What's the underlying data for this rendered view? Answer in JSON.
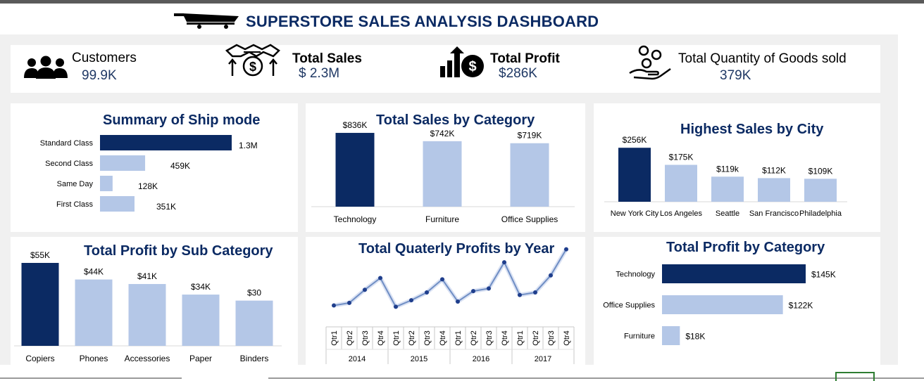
{
  "dashboard": {
    "title": "SUPERSTORE SALES ANALYSIS DASHBOARD",
    "colors": {
      "dark": "#0b2a63",
      "light": "#b4c7e7",
      "title": "#0b2a63"
    }
  },
  "kpis": {
    "customers": {
      "label": "Customers",
      "value": "99.9K",
      "icon": "people-icon"
    },
    "sales": {
      "label": "Total Sales",
      "value": "$ 2.3M",
      "icon": "handshake-dollar-icon"
    },
    "profit": {
      "label": "Total Profit",
      "value": "$286K",
      "icon": "growth-chart-dollar-icon"
    },
    "quantity": {
      "label": "Total Quantity of Goods sold",
      "value": "379K",
      "icon": "hand-coins-icon"
    }
  },
  "chart_data": [
    {
      "id": "ship_mode",
      "type": "bar",
      "orientation": "horizontal",
      "title": "Summary of Ship mode",
      "categories": [
        "Standard Class",
        "Second Class",
        "Same Day",
        "First Class"
      ],
      "values": [
        1340000,
        459000,
        128000,
        351000
      ],
      "labels": [
        "1.3M",
        "459K",
        "128K",
        "351K"
      ],
      "highlight_index": 0
    },
    {
      "id": "sales_by_category",
      "type": "bar",
      "title": "Total Sales by Category",
      "categories": [
        "Technology",
        "Furniture",
        "Office Supplies"
      ],
      "values": [
        836,
        742,
        719
      ],
      "labels": [
        "$836K",
        "$742K",
        "$719K"
      ],
      "ylim": [
        0,
        900
      ],
      "highlight_index": 0
    },
    {
      "id": "sales_by_city",
      "type": "bar",
      "title": "Highest Sales by City",
      "categories": [
        "New York City",
        "Los Angeles",
        "Seattle",
        "San Francisco",
        "Philadelphia"
      ],
      "values": [
        256,
        175,
        119,
        112,
        109
      ],
      "labels": [
        "$256K",
        "$175K",
        "$119k",
        "$112K",
        "$109K"
      ],
      "ylim": [
        0,
        260
      ],
      "highlight_index": 0
    },
    {
      "id": "profit_by_subcategory",
      "type": "bar",
      "title": "Total Profit by Sub Category",
      "categories": [
        "Copiers",
        "Phones",
        "Accessories",
        "Paper",
        "Binders"
      ],
      "values": [
        55,
        44,
        41,
        34,
        30
      ],
      "labels": [
        "$55K",
        "$44K",
        "$41K",
        "$34K",
        "$30"
      ],
      "ylim": [
        0,
        55
      ],
      "highlight_index": 0
    },
    {
      "id": "quarterly_profits",
      "type": "line",
      "title": "Total Quaterly Profits by Year",
      "years": [
        "2014",
        "2015",
        "2016",
        "2017"
      ],
      "quarters": [
        "Qtr1",
        "Qtr2",
        "Qtr3",
        "Qtr4"
      ],
      "values": [
        4,
        6,
        16,
        25,
        3,
        8,
        14,
        24,
        7,
        15,
        17,
        37,
        12,
        14,
        27,
        47
      ],
      "ylim": [
        0,
        50
      ]
    },
    {
      "id": "profit_by_category",
      "type": "bar",
      "orientation": "horizontal",
      "title": "Total Profit by Category",
      "categories": [
        "Technology",
        "Office Supplies",
        "Furniture"
      ],
      "values": [
        145,
        122,
        18
      ],
      "labels": [
        "$145K",
        "$122K",
        "$18K"
      ],
      "highlight_index": 0
    }
  ]
}
